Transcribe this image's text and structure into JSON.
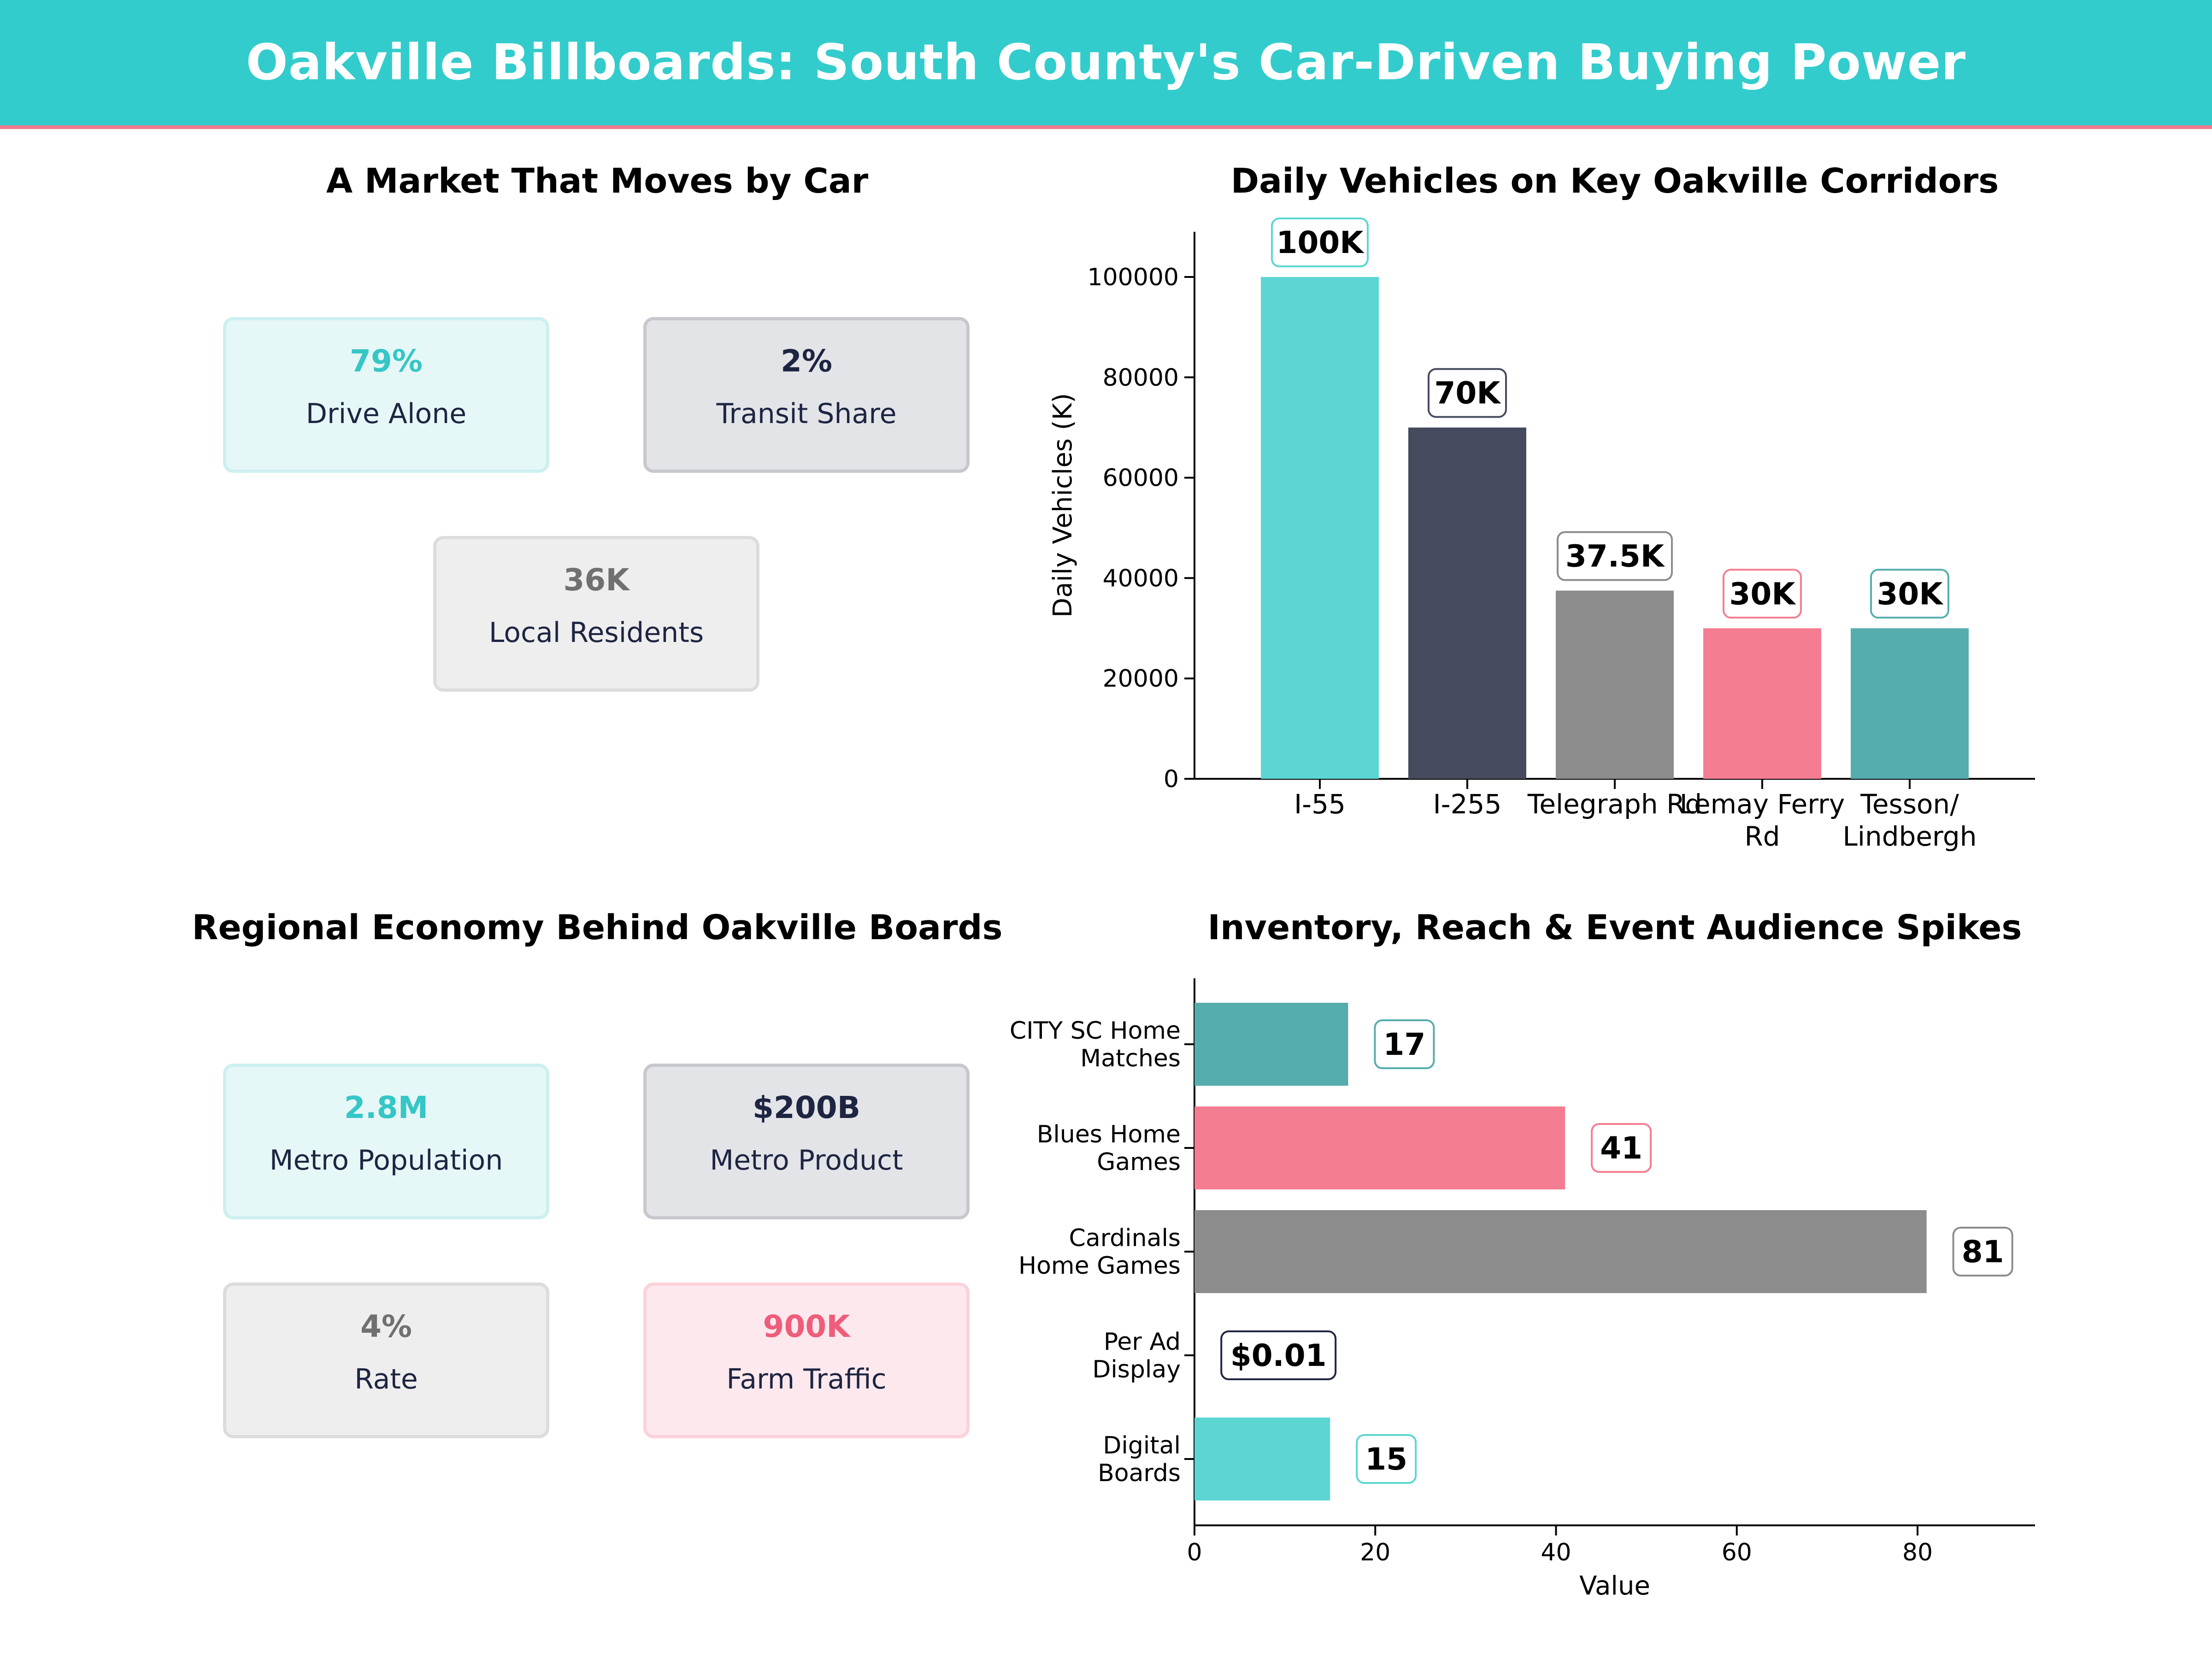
{
  "header": {
    "title": "Oakville Billboards: South County's Car-Driven Buying Power"
  },
  "panels": {
    "market": {
      "title": "A Market That Moves by Car",
      "cards": [
        {
          "value": "79%",
          "label": "Drive Alone",
          "style": "teal"
        },
        {
          "value": "2%",
          "label": "Transit Share",
          "style": "navy"
        },
        {
          "value": "36K",
          "label": "Local Residents",
          "style": "gray"
        }
      ]
    },
    "economy": {
      "title": "Regional Economy Behind Oakville Boards",
      "cards": [
        {
          "value": "2.8M",
          "label": "Metro Population",
          "style": "teal"
        },
        {
          "value": "$200B",
          "label": "Metro Product",
          "style": "navy"
        },
        {
          "value": "4%",
          "label": "Rate",
          "style": "gray"
        },
        {
          "value": "900K",
          "label": "Farm Traffic",
          "style": "pink"
        }
      ]
    }
  },
  "colors": {
    "teal": "#5cd6d3",
    "navy": "#454a5e",
    "gray": "#8c8c8c",
    "pink": "#f57d91",
    "darkteal": "#56adad",
    "banner": "#33cccc",
    "banner_border": "#f07b8c"
  },
  "chart_data": [
    {
      "type": "bar",
      "title": "Daily Vehicles on Key Oakville Corridors",
      "ylabel": "Daily Vehicles (K)",
      "categories": [
        "I-55",
        "I-255",
        "Telegraph Rd",
        "Lemay Ferry Rd",
        "Tesson/ Lindbergh"
      ],
      "category_lines": [
        [
          "I-55"
        ],
        [
          "I-255"
        ],
        [
          "Telegraph Rd"
        ],
        [
          "Lemay Ferry",
          "Rd"
        ],
        [
          "Tesson/",
          "Lindbergh"
        ]
      ],
      "values": [
        100000,
        70000,
        37500,
        30000,
        30000
      ],
      "data_labels": [
        "100K",
        "70K",
        "37.5K",
        "30K",
        "30K"
      ],
      "bar_colors": [
        "teal",
        "navy",
        "gray",
        "pink",
        "darkteal"
      ],
      "ylim": [
        0,
        109000
      ],
      "yticks": [
        0,
        20000,
        40000,
        60000,
        80000,
        100000
      ],
      "ytick_labels": [
        "0",
        "20000",
        "40000",
        "60000",
        "80000",
        "100000"
      ],
      "grid": false
    },
    {
      "type": "bar",
      "orientation": "horizontal",
      "title": "Inventory, Reach & Event Audience Spikes",
      "xlabel": "Value",
      "categories": [
        "CITY SC Home Matches",
        "Blues Home Games",
        "Cardinals Home Games",
        "Per Ad Display",
        "Digital Boards"
      ],
      "category_lines": [
        [
          "CITY SC Home",
          "Matches"
        ],
        [
          "Blues Home",
          "Games"
        ],
        [
          "Cardinals",
          "Home Games"
        ],
        [
          "Per Ad",
          "Display"
        ],
        [
          "Digital",
          "Boards"
        ]
      ],
      "values": [
        17,
        41,
        81,
        0.01,
        15
      ],
      "data_labels": [
        "17",
        "41",
        "81",
        "$0.01",
        "15"
      ],
      "bar_colors": [
        "darkteal",
        "pink",
        "gray",
        "navy",
        "teal"
      ],
      "xlim": [
        0,
        93
      ],
      "xticks": [
        0,
        20,
        40,
        60,
        80
      ],
      "xtick_labels": [
        "0",
        "20",
        "40",
        "60",
        "80"
      ],
      "grid": false
    }
  ]
}
